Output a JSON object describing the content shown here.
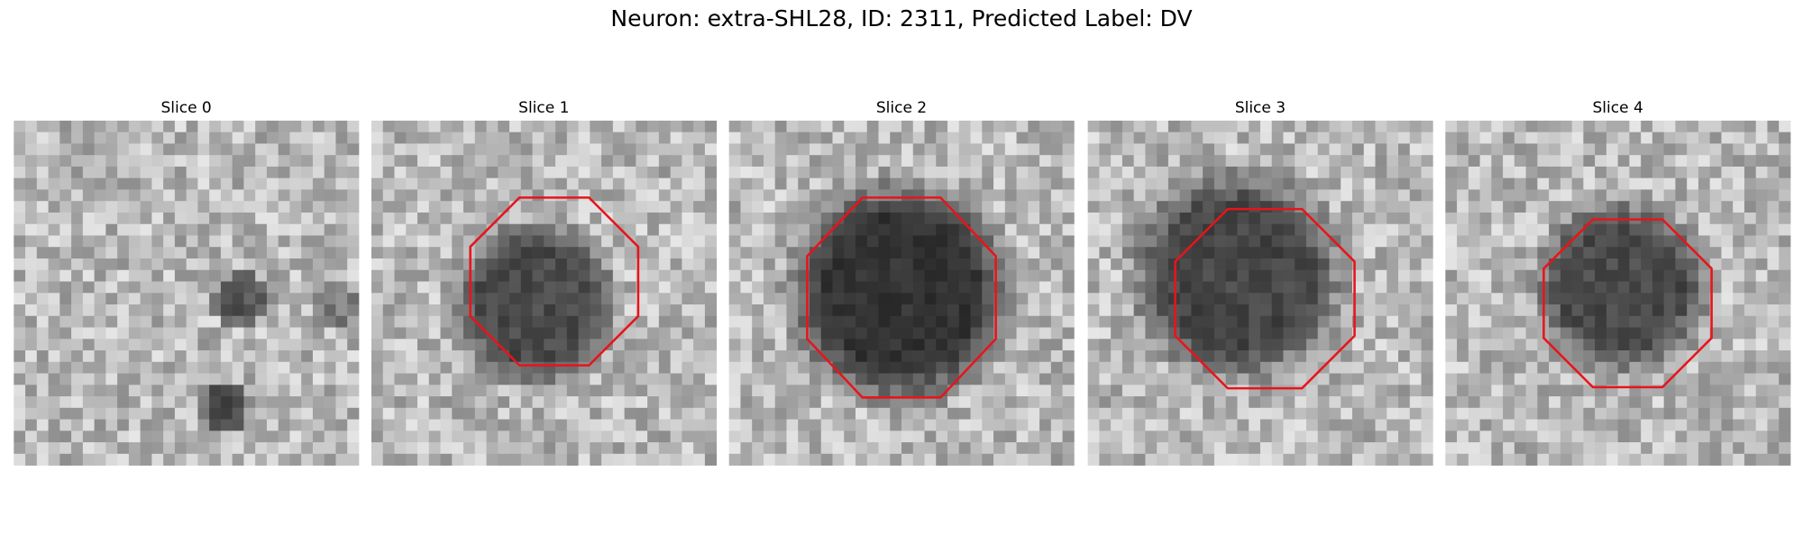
{
  "title": "Neuron: extra-SHL28, ID: 2311, Predicted Label: DV",
  "panels": [
    {
      "title": "Slice 0"
    },
    {
      "title": "Slice 1"
    },
    {
      "title": "Slice 2"
    },
    {
      "title": "Slice 3"
    },
    {
      "title": "Slice 4"
    }
  ]
}
